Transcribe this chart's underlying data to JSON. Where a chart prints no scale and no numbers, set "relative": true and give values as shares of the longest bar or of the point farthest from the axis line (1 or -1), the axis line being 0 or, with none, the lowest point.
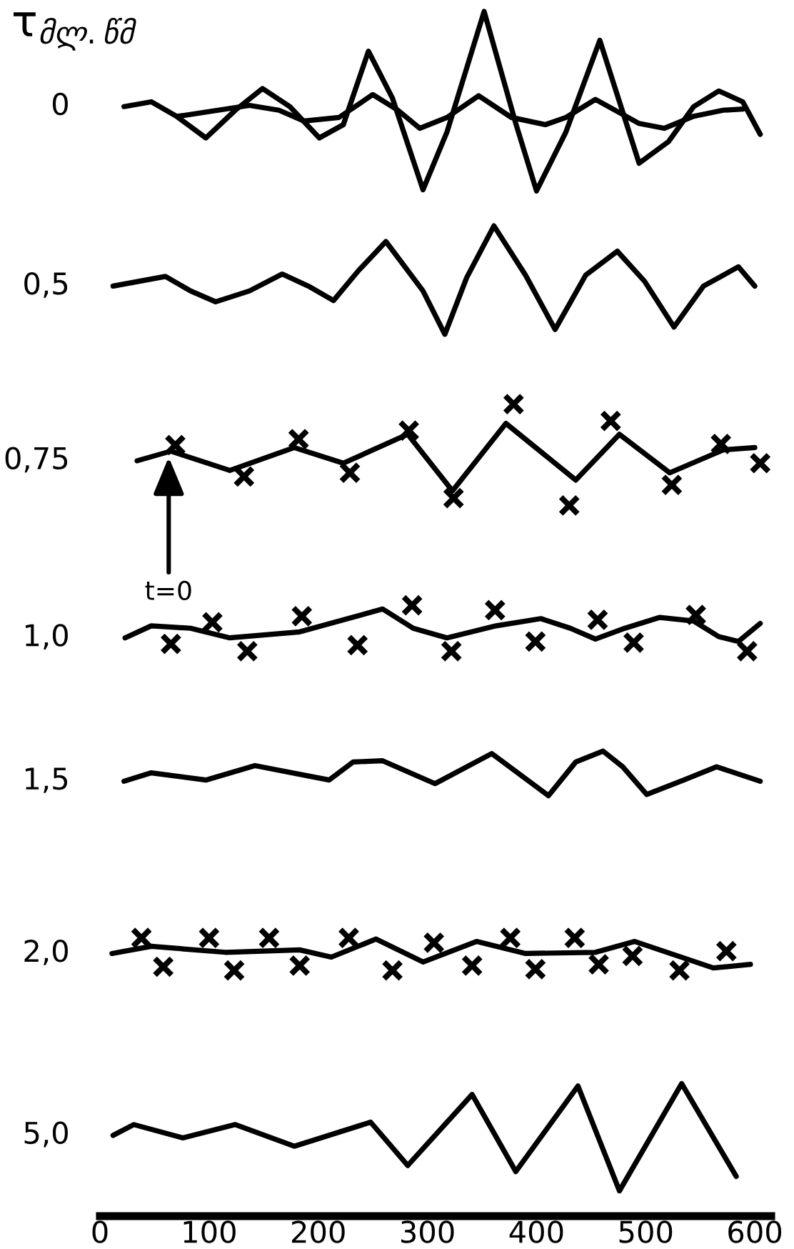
{
  "chart_data": {
    "type": "line",
    "relative": true,
    "ylabel": "τ$_{მლ.წმ}$",
    "xlim": [
      0,
      615
    ],
    "xticks": [
      0,
      100,
      200,
      300,
      400,
      500,
      600
    ],
    "marker": "none",
    "annotations": [
      {
        "text": "t=0",
        "x": 63,
        "y": 0.63
      }
    ],
    "series": [
      {
        "name": "0",
        "color": "#000000",
        "x": [
          22,
          47,
          70,
          97,
          124,
          149,
          174,
          201,
          223,
          246,
          268,
          296,
          318,
          352,
          381,
          400,
          427,
          458,
          476,
          494,
          521,
          544,
          567,
          589,
          605
        ],
        "values": [
          0.921,
          0.925,
          0.913,
          0.895,
          0.918,
          0.936,
          0.921,
          0.895,
          0.906,
          0.967,
          0.928,
          0.852,
          0.9,
          1.0,
          0.907,
          0.851,
          0.9,
          0.976,
          0.925,
          0.874,
          0.892,
          0.921,
          0.934,
          0.925,
          0.898
        ]
      },
      {
        "color": "#000000",
        "x": [
          72,
          137,
          164,
          187,
          219,
          250,
          273,
          293,
          318,
          347,
          377,
          408,
          427,
          454,
          476,
          494,
          517,
          544,
          571,
          589
        ],
        "values": [
          0.913,
          0.922,
          0.918,
          0.909,
          0.912,
          0.931,
          0.918,
          0.903,
          0.912,
          0.93,
          0.912,
          0.906,
          0.912,
          0.927,
          0.916,
          0.907,
          0.903,
          0.913,
          0.918,
          0.919
        ]
      },
      {
        "name": "0,5",
        "color": "#000000",
        "x": [
          12,
          60,
          83,
          106,
          137,
          167,
          191,
          214,
          237,
          262,
          296,
          316,
          336,
          361,
          390,
          417,
          445,
          474,
          499,
          526,
          553,
          585,
          600
        ],
        "values": [
          0.772,
          0.78,
          0.768,
          0.759,
          0.768,
          0.782,
          0.772,
          0.76,
          0.785,
          0.809,
          0.768,
          0.732,
          0.779,
          0.822,
          0.781,
          0.736,
          0.781,
          0.801,
          0.776,
          0.738,
          0.772,
          0.788,
          0.772
        ]
      },
      {
        "name": "0,75",
        "color": "#000000",
        "x": [
          34,
          65,
          119,
          178,
          223,
          282,
          323,
          372,
          436,
          476,
          522,
          571,
          600
        ],
        "values": [
          0.627,
          0.635,
          0.619,
          0.638,
          0.625,
          0.649,
          0.602,
          0.658,
          0.611,
          0.649,
          0.617,
          0.636,
          0.638
        ]
      },
      {
        "type": "scatter",
        "marker": "cross",
        "color": "#000000",
        "x": [
          69,
          132,
          182,
          229,
          283,
          324,
          379,
          430,
          468,
          524,
          569,
          605
        ],
        "values": [
          0.64,
          0.614,
          0.645,
          0.617,
          0.652,
          0.596,
          0.674,
          0.59,
          0.66,
          0.607,
          0.641,
          0.625
        ]
      },
      {
        "name": "1,0",
        "color": "#000000",
        "x": [
          23,
          47,
          83,
          119,
          183,
          259,
          287,
          318,
          363,
          404,
          431,
          454,
          481,
          513,
          544,
          567,
          585,
          605
        ],
        "values": [
          0.48,
          0.49,
          0.488,
          0.48,
          0.485,
          0.504,
          0.488,
          0.48,
          0.49,
          0.496,
          0.488,
          0.479,
          0.488,
          0.497,
          0.494,
          0.481,
          0.477,
          0.492
        ]
      },
      {
        "type": "scatter",
        "marker": "cross",
        "color": "#000000",
        "x": [
          65,
          103,
          135,
          185,
          236,
          286,
          322,
          362,
          399,
          456,
          489,
          546,
          593
        ],
        "values": [
          0.475,
          0.493,
          0.469,
          0.498,
          0.474,
          0.507,
          0.469,
          0.503,
          0.477,
          0.495,
          0.476,
          0.499,
          0.469
        ]
      },
      {
        "name": "1,5",
        "color": "#000000",
        "x": [
          22,
          47,
          97,
          142,
          210,
          232,
          259,
          307,
          359,
          411,
          436,
          461,
          479,
          501,
          535,
          565,
          605
        ],
        "values": [
          0.361,
          0.368,
          0.362,
          0.374,
          0.362,
          0.377,
          0.378,
          0.359,
          0.384,
          0.349,
          0.377,
          0.386,
          0.373,
          0.35,
          0.362,
          0.373,
          0.361
        ]
      },
      {
        "name": "2,0",
        "color": "#000000",
        "x": [
          11,
          47,
          115,
          183,
          212,
          253,
          296,
          345,
          390,
          454,
          490,
          562,
          596
        ],
        "values": [
          0.218,
          0.224,
          0.219,
          0.221,
          0.215,
          0.23,
          0.211,
          0.228,
          0.218,
          0.219,
          0.228,
          0.206,
          0.209
        ]
      },
      {
        "type": "scatter",
        "marker": "cross",
        "color": "#000000",
        "x": [
          38,
          58,
          100,
          123,
          155,
          183,
          228,
          268,
          306,
          341,
          376,
          399,
          435,
          457,
          488,
          531,
          574
        ],
        "values": [
          0.231,
          0.207,
          0.231,
          0.204,
          0.231,
          0.208,
          0.231,
          0.204,
          0.227,
          0.208,
          0.231,
          0.205,
          0.231,
          0.209,
          0.216,
          0.204,
          0.22
        ]
      },
      {
        "name": "5,0",
        "color": "#000000",
        "x": [
          12,
          31,
          76,
          124,
          178,
          248,
          282,
          341,
          381,
          438,
          476,
          533,
          583
        ],
        "values": [
          0.067,
          0.076,
          0.065,
          0.076,
          0.058,
          0.078,
          0.042,
          0.101,
          0.037,
          0.108,
          0.021,
          0.11,
          0.033
        ]
      }
    ]
  }
}
